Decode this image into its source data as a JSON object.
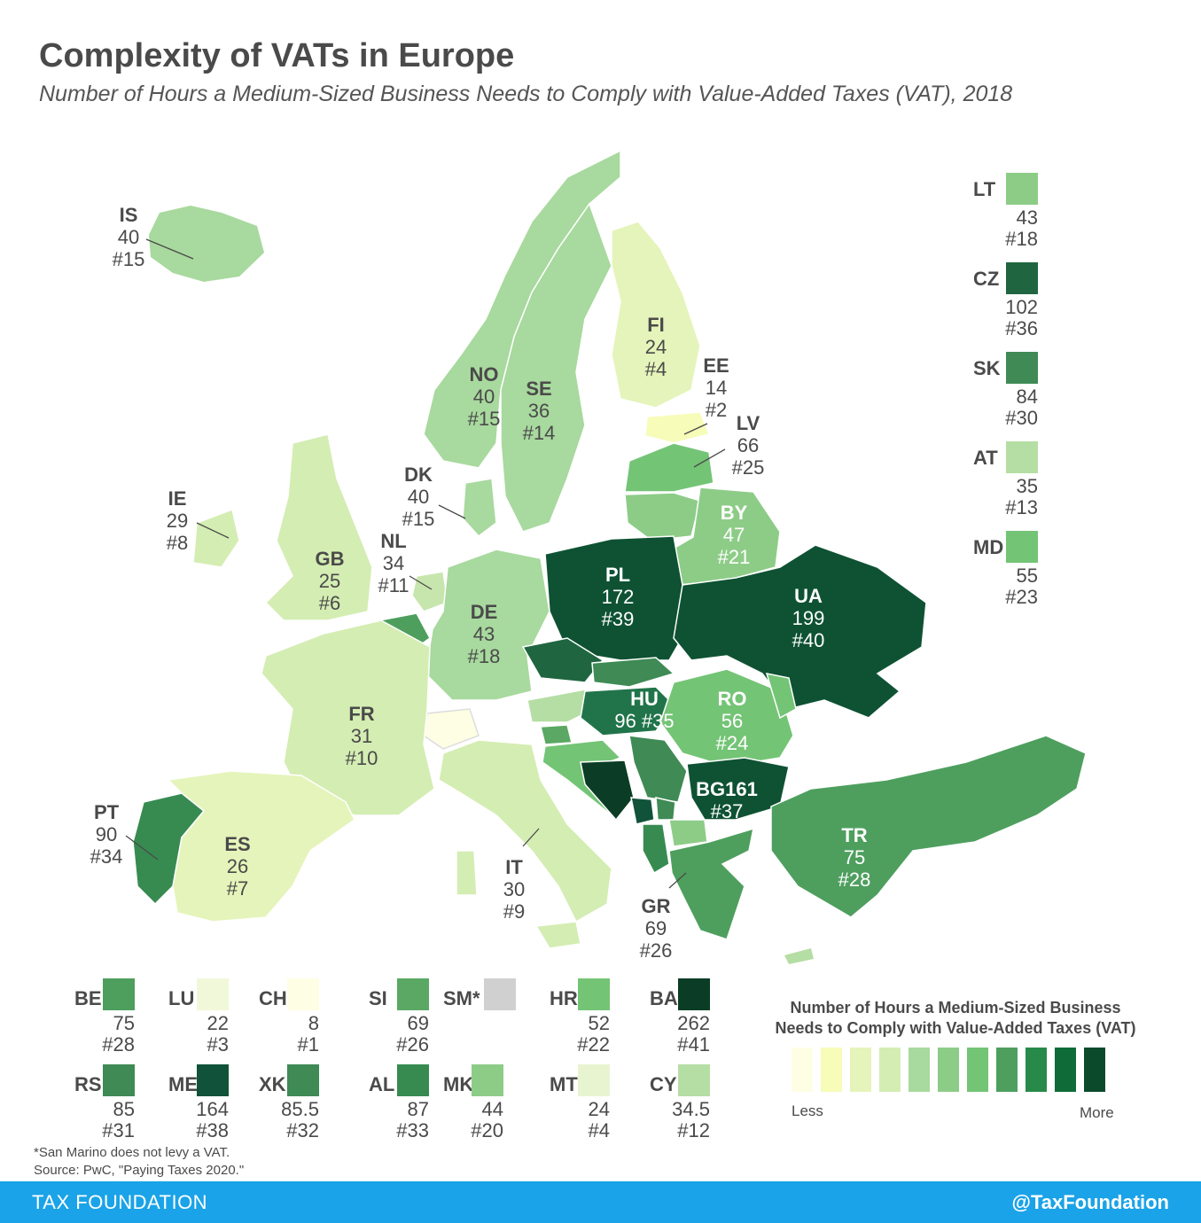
{
  "header": {
    "title": "Complexity of VATs in Europe",
    "subtitle": "Number of Hours a Medium-Sized Business Needs to Comply with Value-Added Taxes (VAT), 2018"
  },
  "palette": [
    "#ffffe5",
    "#f7fcb9",
    "#e5f4ba",
    "#d4edb3",
    "#a8d99e",
    "#8dcc87",
    "#74c476",
    "#4e9f5e",
    "#378b51",
    "#21744a",
    "#0e5233"
  ],
  "map_labels": [
    {
      "code": "IS",
      "value": "40",
      "rank": "#15",
      "color": "#a8d99e"
    },
    {
      "code": "NO",
      "value": "40",
      "rank": "#15",
      "color": "#a8d99e"
    },
    {
      "code": "SE",
      "value": "36",
      "rank": "#14",
      "color": "#a8d99e"
    },
    {
      "code": "FI",
      "value": "24",
      "rank": "#4",
      "color": "#e5f4ba"
    },
    {
      "code": "EE",
      "value": "14",
      "rank": "#2",
      "color": "#f7fcb9"
    },
    {
      "code": "LV",
      "value": "66",
      "rank": "#25",
      "color": "#74c476"
    },
    {
      "code": "DK",
      "value": "40",
      "rank": "#15",
      "color": "#a8d99e"
    },
    {
      "code": "IE",
      "value": "29",
      "rank": "#8",
      "color": "#d4edb3"
    },
    {
      "code": "GB",
      "value": "25",
      "rank": "#6",
      "color": "#d4edb3"
    },
    {
      "code": "NL",
      "value": "34",
      "rank": "#11",
      "color": "#c7e6ae"
    },
    {
      "code": "BY",
      "value": "47",
      "rank": "#21",
      "color": "#8dcc87"
    },
    {
      "code": "PL",
      "value": "172",
      "rank": "#39",
      "color": "#0e5233"
    },
    {
      "code": "UA",
      "value": "199",
      "rank": "#40",
      "color": "#0e5233"
    },
    {
      "code": "DE",
      "value": "43",
      "rank": "#18",
      "color": "#a8d99e"
    },
    {
      "code": "HU",
      "value": "96",
      "rank": "#35",
      "color": "#21744a"
    },
    {
      "code": "RO",
      "value": "56",
      "rank": "#24",
      "color": "#74c476"
    },
    {
      "code": "FR",
      "value": "31",
      "rank": "#10",
      "color": "#d4edb3"
    },
    {
      "code": "BG",
      "value": "161",
      "rank": "#37",
      "color": "#0e5233"
    },
    {
      "code": "TR",
      "value": "75",
      "rank": "#28",
      "color": "#4e9f5e"
    },
    {
      "code": "PT",
      "value": "90",
      "rank": "#34",
      "color": "#378b51"
    },
    {
      "code": "ES",
      "value": "26",
      "rank": "#7",
      "color": "#e5f4ba"
    },
    {
      "code": "IT",
      "value": "30",
      "rank": "#9",
      "color": "#d4edb3"
    },
    {
      "code": "GR",
      "value": "69",
      "rank": "#26",
      "color": "#4e9f5e"
    }
  ],
  "side_legend": [
    {
      "code": "LT",
      "value": "43",
      "rank": "#18",
      "color": "#8dcc87"
    },
    {
      "code": "CZ",
      "value": "102",
      "rank": "#36",
      "color": "#1f6640"
    },
    {
      "code": "SK",
      "value": "84",
      "rank": "#30",
      "color": "#3f8a55"
    },
    {
      "code": "AT",
      "value": "35",
      "rank": "#13",
      "color": "#b5dea4"
    },
    {
      "code": "MD",
      "value": "55",
      "rank": "#23",
      "color": "#74c476"
    }
  ],
  "bottom_legend": [
    {
      "code": "BE",
      "value": "75",
      "rank": "#28",
      "color": "#4e9f5e"
    },
    {
      "code": "LU",
      "value": "22",
      "rank": "#3",
      "color": "#f1f8d9"
    },
    {
      "code": "CH",
      "value": "8",
      "rank": "#1",
      "color": "#fefee5"
    },
    {
      "code": "SI",
      "value": "69",
      "rank": "#26",
      "color": "#5aa863"
    },
    {
      "code": "SM*",
      "value": "",
      "rank": "",
      "color": "#d0d0d0"
    },
    {
      "code": "HR",
      "value": "52",
      "rank": "#22",
      "color": "#74c476"
    },
    {
      "code": "BA",
      "value": "262",
      "rank": "#41",
      "color": "#0b3d26"
    },
    {
      "code": "RS",
      "value": "85",
      "rank": "#31",
      "color": "#3f8a55"
    },
    {
      "code": "ME",
      "value": "164",
      "rank": "#38",
      "color": "#10533a"
    },
    {
      "code": "XK",
      "value": "85.5",
      "rank": "#32",
      "color": "#3f8a55"
    },
    {
      "code": "AL",
      "value": "87",
      "rank": "#33",
      "color": "#378b51"
    },
    {
      "code": "MK",
      "value": "44",
      "rank": "#20",
      "color": "#8dcc87"
    },
    {
      "code": "MT",
      "value": "24",
      "rank": "#4",
      "color": "#e8f4d0"
    },
    {
      "code": "CY",
      "value": "34.5",
      "rank": "#12",
      "color": "#b5dea4"
    }
  ],
  "scale": {
    "title_line1": "Number of Hours a Medium-Sized Business",
    "title_line2": "Needs to Comply with Value-Added Taxes (VAT)",
    "less": "Less",
    "more": "More",
    "colors": [
      "#fefee5",
      "#f7fcb9",
      "#e5f4ba",
      "#d4edb3",
      "#a8d99e",
      "#8dcc87",
      "#74c476",
      "#4e9f5e",
      "#278a48",
      "#0f6c38",
      "#0b4a2b"
    ]
  },
  "notes": {
    "sm_note": "*San Marino does not levy a VAT.",
    "source": "Source: PwC, \"Paying Taxes 2020.\""
  },
  "footer": {
    "org": "TAX FOUNDATION",
    "handle": "@TaxFoundation"
  }
}
